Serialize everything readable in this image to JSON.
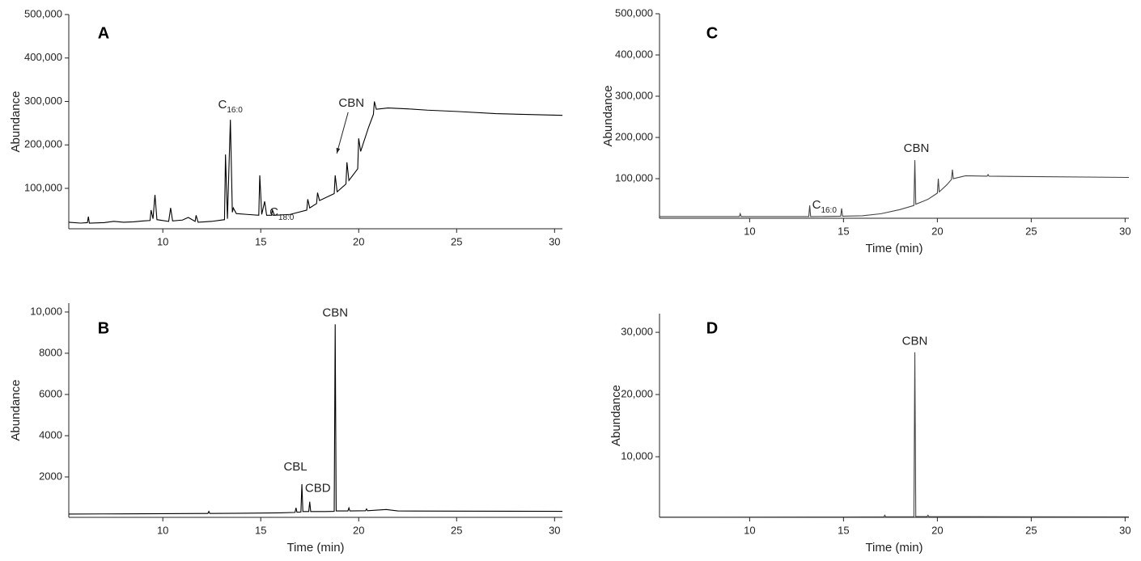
{
  "chart_data": [
    {
      "type": "line",
      "panel_label": "A",
      "ylabel": "Abundance",
      "color": "#000000",
      "xlim": [
        5.2,
        30.4
      ],
      "xticks": [
        10,
        15,
        20,
        25,
        30
      ],
      "ylim": [
        7000,
        500000
      ],
      "yticks": [
        {
          "value": 100000,
          "label": "100,000"
        },
        {
          "value": 200000,
          "label": "200,000"
        },
        {
          "value": 300000,
          "label": "300,000"
        },
        {
          "value": 400000,
          "label": "400,000"
        },
        {
          "value": 500000,
          "label": "500,000"
        }
      ],
      "x": [
        5.2,
        5.8,
        6.15,
        6.2,
        6.25,
        7,
        7.5,
        8,
        8.5,
        9.0,
        9.35,
        9.4,
        9.5,
        9.6,
        9.7,
        10.3,
        10.4,
        10.5,
        11.0,
        11.3,
        11.65,
        11.7,
        11.8,
        12.5,
        13.15,
        13.2,
        13.3,
        13.45,
        13.55,
        13.6,
        13.75,
        14.3,
        14.9,
        14.95,
        15.05,
        15.2,
        15.3,
        15.55,
        15.6,
        15.7,
        16.5,
        17.35,
        17.4,
        17.5,
        17.85,
        17.9,
        18.0,
        18.75,
        18.8,
        18.9,
        19.35,
        19.4,
        19.5,
        19.95,
        20.0,
        20.1,
        20.5,
        20.75,
        20.8,
        20.9,
        21.5,
        22.5,
        23.5,
        25,
        27,
        30.4
      ],
      "values": [
        22000,
        20000,
        21000,
        35000,
        20000,
        21000,
        24000,
        22000,
        23000,
        25000,
        26000,
        50000,
        30000,
        85000,
        28000,
        24000,
        55000,
        25000,
        27000,
        33000,
        24000,
        38000,
        22000,
        24000,
        28000,
        178000,
        30000,
        258000,
        45000,
        55000,
        42000,
        40000,
        38000,
        130000,
        40000,
        70000,
        38000,
        38000,
        50000,
        38000,
        40000,
        50000,
        75000,
        55000,
        65000,
        90000,
        72000,
        88000,
        130000,
        92000,
        110000,
        160000,
        118000,
        145000,
        215000,
        185000,
        240000,
        270000,
        300000,
        282000,
        285000,
        283000,
        280000,
        277000,
        272000,
        268000
      ],
      "annotations": [
        {
          "text": "C",
          "subscript": "16:0",
          "x": 13.45,
          "y": 258000
        },
        {
          "text": "C",
          "subscript": "18:0",
          "x": 15.2,
          "y": 70000
        },
        {
          "text": "CBN",
          "x": 18.8,
          "y": 130000,
          "arrow": true
        }
      ]
    },
    {
      "type": "line",
      "panel_label": "B",
      "ylabel": "Abundance",
      "xlabel": "Time (min)",
      "color": "#000000",
      "xlim": [
        5.2,
        30.4
      ],
      "xticks": [
        10,
        15,
        20,
        25,
        30
      ],
      "ylim": [
        40,
        10430
      ],
      "yticks": [
        2000,
        4000,
        6000,
        8000,
        {
          "value": 10000,
          "label": "10,000"
        }
      ],
      "x": [
        5.2,
        8,
        12.3,
        12.35,
        12.4,
        14,
        15,
        16,
        16.75,
        16.8,
        16.85,
        17.05,
        17.1,
        17.15,
        17.45,
        17.5,
        17.55,
        18.3,
        18.75,
        18.8,
        18.85,
        19.45,
        19.5,
        19.55,
        20.35,
        20.4,
        20.45,
        21.4,
        22,
        25,
        30.4
      ],
      "values": [
        200,
        210,
        230,
        330,
        230,
        240,
        250,
        260,
        280,
        500,
        290,
        300,
        1650,
        320,
        320,
        800,
        320,
        320,
        330,
        9400,
        350,
        350,
        500,
        350,
        360,
        450,
        360,
        420,
        350,
        340,
        330
      ],
      "annotations": [
        {
          "text": "CBL",
          "x": 17.1,
          "y": 1650
        },
        {
          "text": "CBD",
          "x": 17.5,
          "y": 800
        },
        {
          "text": "CBN",
          "x": 18.8,
          "y": 9400
        }
      ]
    },
    {
      "type": "line",
      "panel_label": "C",
      "ylabel": "Abundance",
      "xlabel": "Time (min)",
      "color": "#444444",
      "xlim": [
        5.2,
        30.2
      ],
      "xticks": [
        10,
        15,
        20,
        25,
        30
      ],
      "ylim": [
        4000,
        500000
      ],
      "yticks": [
        {
          "value": 100000,
          "label": "100,000"
        },
        {
          "value": 200000,
          "label": "200,000"
        },
        {
          "value": 300000,
          "label": "300,000"
        },
        {
          "value": 400000,
          "label": "400,000"
        },
        {
          "value": 500000,
          "label": "500,000"
        }
      ],
      "x": [
        5.2,
        9.45,
        9.5,
        9.55,
        13.15,
        13.2,
        13.25,
        14.85,
        14.9,
        14.95,
        16,
        17,
        18,
        18.75,
        18.8,
        18.85,
        19.5,
        20.0,
        20.05,
        20.1,
        20.5,
        20.75,
        20.8,
        20.85,
        21.5,
        22.65,
        22.7,
        22.75,
        25,
        30.2
      ],
      "values": [
        8000,
        8000,
        15000,
        8000,
        8000,
        35000,
        8000,
        9000,
        28000,
        9000,
        10000,
        15000,
        25000,
        35000,
        145000,
        38000,
        50000,
        65000,
        100000,
        68000,
        85000,
        98000,
        122000,
        100000,
        107000,
        106000,
        110000,
        106000,
        105000,
        103000
      ],
      "annotations": [
        {
          "text": "CBN",
          "x": 18.8,
          "y": 145000
        },
        {
          "text": "C",
          "subscript": "16:0",
          "x": 13.2,
          "y": 35000
        }
      ]
    },
    {
      "type": "line",
      "panel_label": "D",
      "ylabel": "Abundance",
      "xlabel": "Time (min)",
      "color": "#444444",
      "xlim": [
        5.2,
        30.2
      ],
      "xticks": [
        10,
        15,
        20,
        25,
        30
      ],
      "ylim": [
        260,
        33000
      ],
      "yticks": [
        {
          "value": 10000,
          "label": "10,000"
        },
        {
          "value": 20000,
          "label": "20,000"
        },
        {
          "value": 30000,
          "label": "30,000"
        }
      ],
      "x": [
        5.2,
        15,
        17.15,
        17.2,
        17.25,
        18.75,
        18.8,
        18.85,
        19.45,
        19.5,
        19.55,
        25,
        30.2
      ],
      "values": [
        300,
        320,
        350,
        600,
        350,
        350,
        26800,
        400,
        380,
        600,
        380,
        350,
        340
      ],
      "annotations": [
        {
          "text": "CBN",
          "x": 18.8,
          "y": 26800
        }
      ]
    }
  ]
}
